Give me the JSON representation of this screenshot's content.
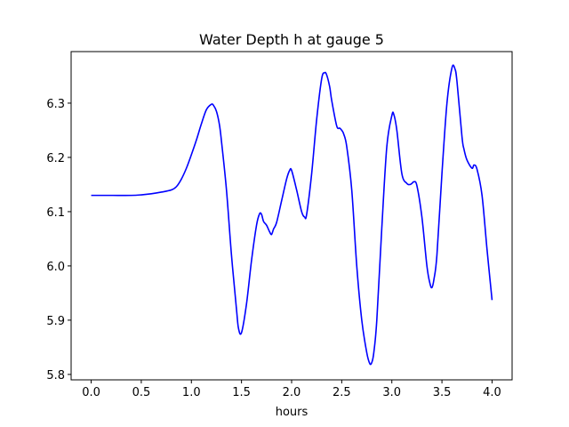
{
  "chart_data": {
    "type": "line",
    "title": "Water Depth h at gauge 5",
    "xlabel": "hours",
    "ylabel": "",
    "xlim": [
      -0.2,
      4.2
    ],
    "ylim": [
      5.79,
      6.395
    ],
    "xticks": [
      0.0,
      0.5,
      1.0,
      1.5,
      2.0,
      2.5,
      3.0,
      3.5,
      4.0
    ],
    "xtick_labels": [
      "0.0",
      "0.5",
      "1.0",
      "1.5",
      "2.0",
      "2.5",
      "3.0",
      "3.5",
      "4.0"
    ],
    "yticks": [
      5.8,
      5.9,
      6.0,
      6.1,
      6.2,
      6.3
    ],
    "ytick_labels": [
      "5.8",
      "5.9",
      "6.0",
      "6.1",
      "6.2",
      "6.3"
    ],
    "grid": false,
    "series": [
      {
        "color": "#0000ff",
        "x": [
          0.0,
          0.2,
          0.4,
          0.5,
          0.6,
          0.7,
          0.8,
          0.85,
          0.9,
          0.95,
          1.0,
          1.05,
          1.1,
          1.15,
          1.2,
          1.22,
          1.25,
          1.28,
          1.3,
          1.35,
          1.4,
          1.45,
          1.47,
          1.5,
          1.55,
          1.6,
          1.65,
          1.68,
          1.7,
          1.72,
          1.75,
          1.78,
          1.8,
          1.82,
          1.85,
          1.9,
          1.95,
          1.98,
          2.0,
          2.05,
          2.1,
          2.13,
          2.15,
          2.2,
          2.25,
          2.3,
          2.33,
          2.35,
          2.38,
          2.4,
          2.45,
          2.48,
          2.5,
          2.52,
          2.55,
          2.6,
          2.65,
          2.7,
          2.75,
          2.78,
          2.8,
          2.82,
          2.85,
          2.9,
          2.95,
          3.0,
          3.02,
          3.05,
          3.1,
          3.15,
          3.18,
          3.2,
          3.22,
          3.25,
          3.3,
          3.35,
          3.38,
          3.4,
          3.42,
          3.45,
          3.5,
          3.55,
          3.6,
          3.63,
          3.65,
          3.7,
          3.72,
          3.75,
          3.8,
          3.82,
          3.85,
          3.9,
          3.95,
          4.0
        ],
        "y": [
          6.13,
          6.13,
          6.13,
          6.131,
          6.133,
          6.136,
          6.14,
          6.146,
          6.16,
          6.18,
          6.205,
          6.232,
          6.262,
          6.288,
          6.298,
          6.296,
          6.285,
          6.26,
          6.23,
          6.14,
          6.02,
          5.92,
          5.885,
          5.877,
          5.93,
          6.01,
          6.075,
          6.096,
          6.095,
          6.082,
          6.075,
          6.063,
          6.058,
          6.068,
          6.08,
          6.12,
          6.16,
          6.176,
          6.176,
          6.14,
          6.1,
          6.09,
          6.095,
          6.17,
          6.27,
          6.345,
          6.356,
          6.352,
          6.33,
          6.305,
          6.258,
          6.254,
          6.25,
          6.243,
          6.22,
          6.14,
          6.0,
          5.9,
          5.84,
          5.82,
          5.822,
          5.84,
          5.9,
          6.07,
          6.22,
          6.277,
          6.279,
          6.25,
          6.17,
          6.152,
          6.15,
          6.152,
          6.155,
          6.148,
          6.09,
          6.0,
          5.968,
          5.96,
          5.975,
          6.02,
          6.17,
          6.3,
          6.365,
          6.363,
          6.34,
          6.238,
          6.215,
          6.195,
          6.18,
          6.186,
          6.178,
          6.13,
          6.03,
          5.937
        ]
      }
    ]
  }
}
